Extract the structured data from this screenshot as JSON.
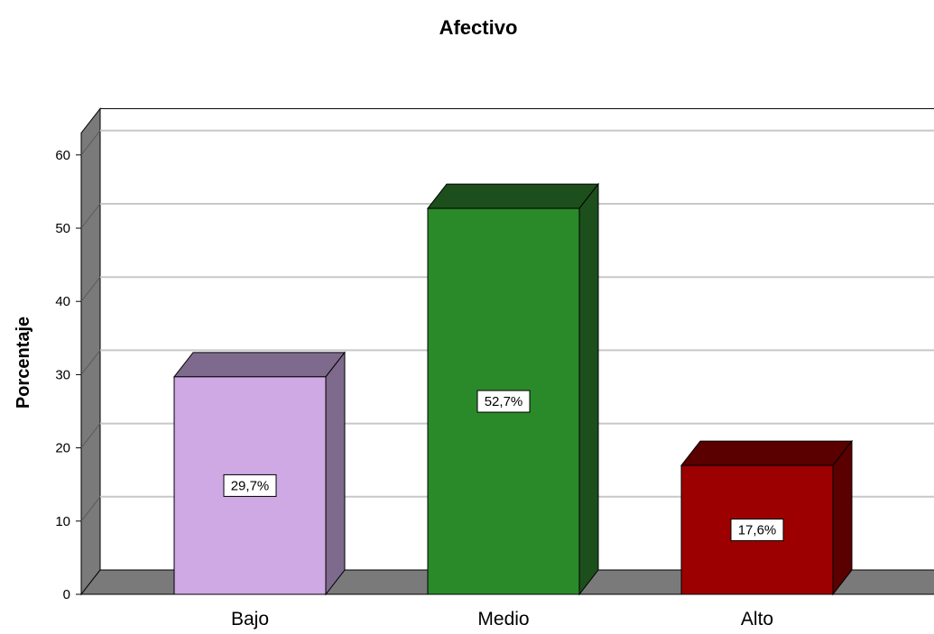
{
  "chart_data": {
    "type": "bar",
    "title": "Afectivo",
    "xlabel": "",
    "ylabel": "Porcentaje",
    "categories": [
      "Bajo",
      "Medio",
      "Alto"
    ],
    "values": [
      29.7,
      52.7,
      17.6
    ],
    "data_labels": [
      "29,7%",
      "52,7%",
      "17,6%"
    ],
    "yticks": [
      0,
      10,
      20,
      30,
      40,
      50,
      60
    ],
    "ylim": [
      0,
      63
    ],
    "grid": true,
    "three_d": true,
    "colors": {
      "Bajo": {
        "front": "#cfa9e3",
        "side": "#7e6a8c",
        "top": "#7e6a8c"
      },
      "Medio": {
        "front": "#2a8a2a",
        "side": "#1c4f1c",
        "top": "#1c4f1c"
      },
      "Alto": {
        "front": "#9c0000",
        "side": "#5a0000",
        "top": "#5a0000"
      }
    },
    "wall_color": "#ffffff",
    "floor_color": "#7a7a7a",
    "gridline_color": "#c8c8c8"
  }
}
